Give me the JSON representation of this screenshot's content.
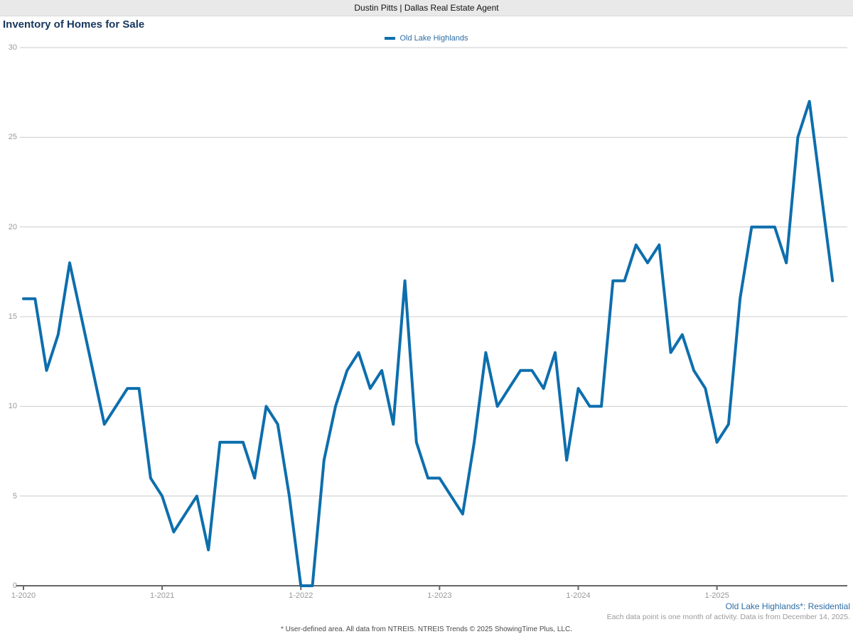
{
  "header": {
    "title": "Dustin Pitts | Dallas Real Estate Agent"
  },
  "chart_header": {
    "title": "Inventory of Homes for Sale",
    "legend_label": "Old Lake Highlands"
  },
  "annotations": {
    "series_note": "Old Lake Highlands*: Residential",
    "data_note": "Each data point is one month of activity. Data is from December 14, 2025.",
    "footer": "* User-defined area. All data from NTREIS. NTREIS Trends © 2025 ShowingTime Plus, LLC."
  },
  "colors": {
    "line": "#0d6ead",
    "grid": "#cccccc",
    "axis": "#666666",
    "tick_text": "#999999"
  },
  "chart_data": {
    "type": "line",
    "title": "Inventory of Homes for Sale",
    "legend": [
      "Old Lake Highlands"
    ],
    "legend_position": "top-center",
    "grid": "horizontal",
    "ylim": [
      0,
      30
    ],
    "y_ticks": [
      0,
      5,
      10,
      15,
      20,
      25,
      30
    ],
    "x_tick_labels": [
      "1-2020",
      "1-2021",
      "1-2022",
      "1-2023",
      "1-2024",
      "1-2025"
    ],
    "x_tick_month_indices": [
      0,
      12,
      24,
      36,
      48,
      60
    ],
    "x": [
      "1-2020",
      "2-2020",
      "3-2020",
      "4-2020",
      "5-2020",
      "6-2020",
      "7-2020",
      "8-2020",
      "9-2020",
      "10-2020",
      "11-2020",
      "12-2020",
      "1-2021",
      "2-2021",
      "3-2021",
      "4-2021",
      "5-2021",
      "6-2021",
      "7-2021",
      "8-2021",
      "9-2021",
      "10-2021",
      "11-2021",
      "12-2021",
      "1-2022",
      "2-2022",
      "3-2022",
      "4-2022",
      "5-2022",
      "6-2022",
      "7-2022",
      "8-2022",
      "9-2022",
      "10-2022",
      "11-2022",
      "12-2022",
      "1-2023",
      "2-2023",
      "3-2023",
      "4-2023",
      "5-2023",
      "6-2023",
      "7-2023",
      "8-2023",
      "9-2023",
      "10-2023",
      "11-2023",
      "12-2023",
      "1-2024",
      "2-2024",
      "3-2024",
      "4-2024",
      "5-2024",
      "6-2024",
      "7-2024",
      "8-2024",
      "9-2024",
      "10-2024",
      "11-2024",
      "12-2024",
      "1-2025",
      "2-2025",
      "3-2025",
      "4-2025",
      "5-2025",
      "6-2025",
      "7-2025",
      "8-2025",
      "9-2025",
      "10-2025",
      "11-2025"
    ],
    "series": [
      {
        "name": "Old Lake Highlands",
        "values": [
          16,
          16,
          12,
          14,
          18,
          15,
          12,
          9,
          10,
          11,
          11,
          6,
          5,
          3,
          4,
          5,
          2,
          8,
          8,
          8,
          6,
          10,
          9,
          5,
          0,
          0,
          7,
          10,
          12,
          13,
          11,
          12,
          9,
          17,
          8,
          6,
          6,
          5,
          4,
          8,
          13,
          10,
          11,
          12,
          12,
          11,
          13,
          7,
          11,
          10,
          10,
          17,
          17,
          19,
          18,
          19,
          13,
          14,
          12,
          11,
          8,
          9,
          16,
          20,
          20,
          20,
          18,
          25,
          27,
          22,
          17
        ]
      }
    ]
  }
}
